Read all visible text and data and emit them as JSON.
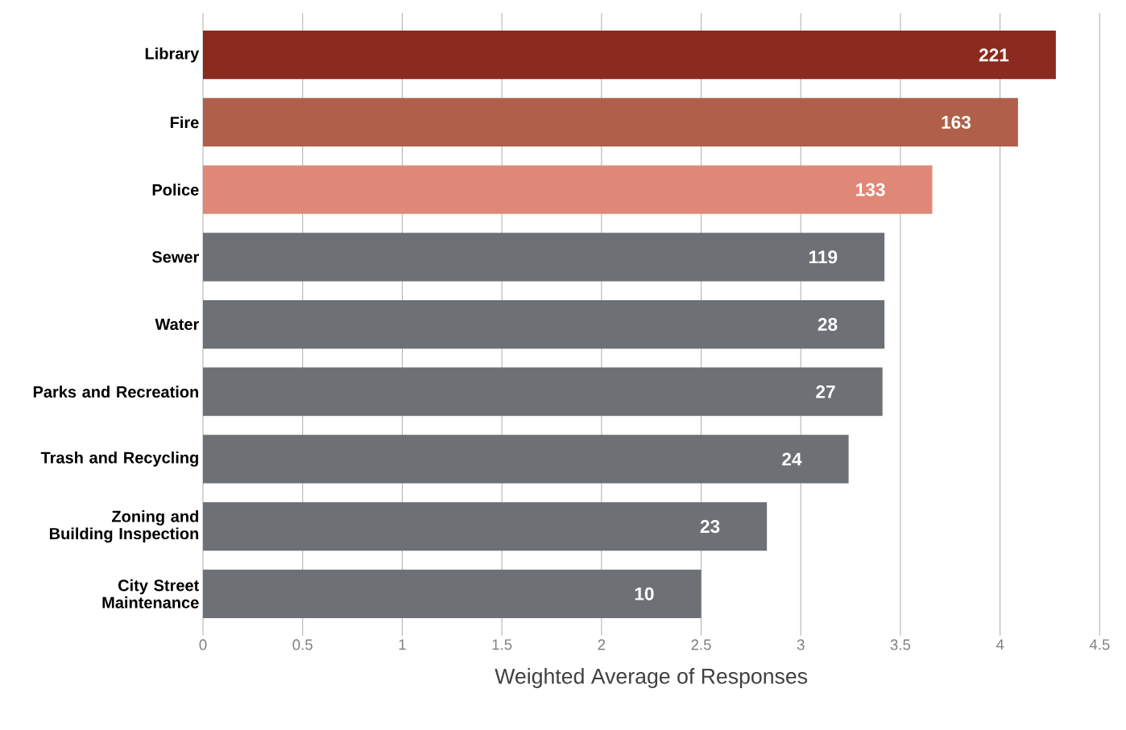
{
  "chart_data": {
    "type": "bar",
    "orientation": "horizontal",
    "xlabel": "Weighted Average of Responses",
    "categories": [
      "Library",
      "Fire",
      "Police",
      "Sewer",
      "Water",
      "Parks and Recreation",
      "Trash and Recycling",
      "Zoning and Building Inspection",
      "City Street Maintenance"
    ],
    "values": [
      4.28,
      4.09,
      3.66,
      3.42,
      3.42,
      3.41,
      3.24,
      2.83,
      2.5
    ],
    "annotations": [
      {
        "text": "221",
        "x": 4.28,
        "y": "Library"
      },
      {
        "text": "163",
        "x": 4.09,
        "y": "Fire"
      },
      {
        "text": "133",
        "x": 3.66,
        "y": "Police"
      },
      {
        "text": "119",
        "x": 3.42,
        "y": "Sewer"
      },
      {
        "text": "28",
        "x": 3.42,
        "y": "Water"
      },
      {
        "text": "27",
        "x": 3.41,
        "y": "Parks and Recreation"
      },
      {
        "text": "24",
        "x": 3.24,
        "y": "Trash and Recycling"
      },
      {
        "text": "23",
        "x": 2.83,
        "y": "Zoning and Building Inspection"
      },
      {
        "text": "10",
        "x": 2.5,
        "y": "City Street Maintenance"
      }
    ],
    "colors": [
      "#8b2a1e",
      "#b0604a",
      "#e08878",
      "#6d7075",
      "#6d7075",
      "#6d7075",
      "#6d7075",
      "#6d7075",
      "#6d7075"
    ],
    "xlim": [
      0,
      4.5
    ],
    "xticks": [
      0,
      0.5,
      1,
      1.5,
      2,
      2.5,
      3,
      3.5,
      4,
      4.5
    ],
    "grid": "x"
  }
}
